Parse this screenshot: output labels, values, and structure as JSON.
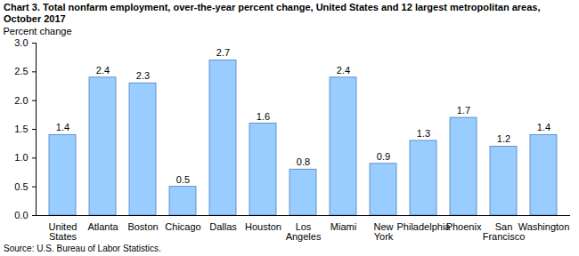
{
  "chart_data": {
    "type": "bar",
    "title": "Chart 3. Total nonfarm employment, over-the-year percent change, United States and 12 largest metropolitan areas, October 2017",
    "y_label": "Percent change",
    "caption": "Source: U.S. Bureau of Labor Statistics.",
    "categories": [
      "United States",
      "Atlanta",
      "Boston",
      "Chicago",
      "Dallas",
      "Houston",
      "Los Angeles",
      "Miami",
      "New York",
      "Philadelphia",
      "Phoenix",
      "San Francisco",
      "Washington"
    ],
    "values": [
      1.4,
      2.4,
      2.3,
      0.5,
      2.7,
      1.6,
      0.8,
      2.4,
      0.9,
      1.3,
      1.7,
      1.2,
      1.4
    ],
    "color": "#99ccff",
    "ylim": [
      0,
      3
    ],
    "yticks": [
      {
        "value": 0,
        "label": "0.0"
      },
      0.5,
      {
        "value": 1,
        "label": "1.0"
      },
      1.5,
      {
        "value": 2,
        "label": "2.0"
      },
      2.5,
      {
        "value": 3,
        "label": "3.0"
      }
    ],
    "grid": false,
    "data_labels": true
  }
}
